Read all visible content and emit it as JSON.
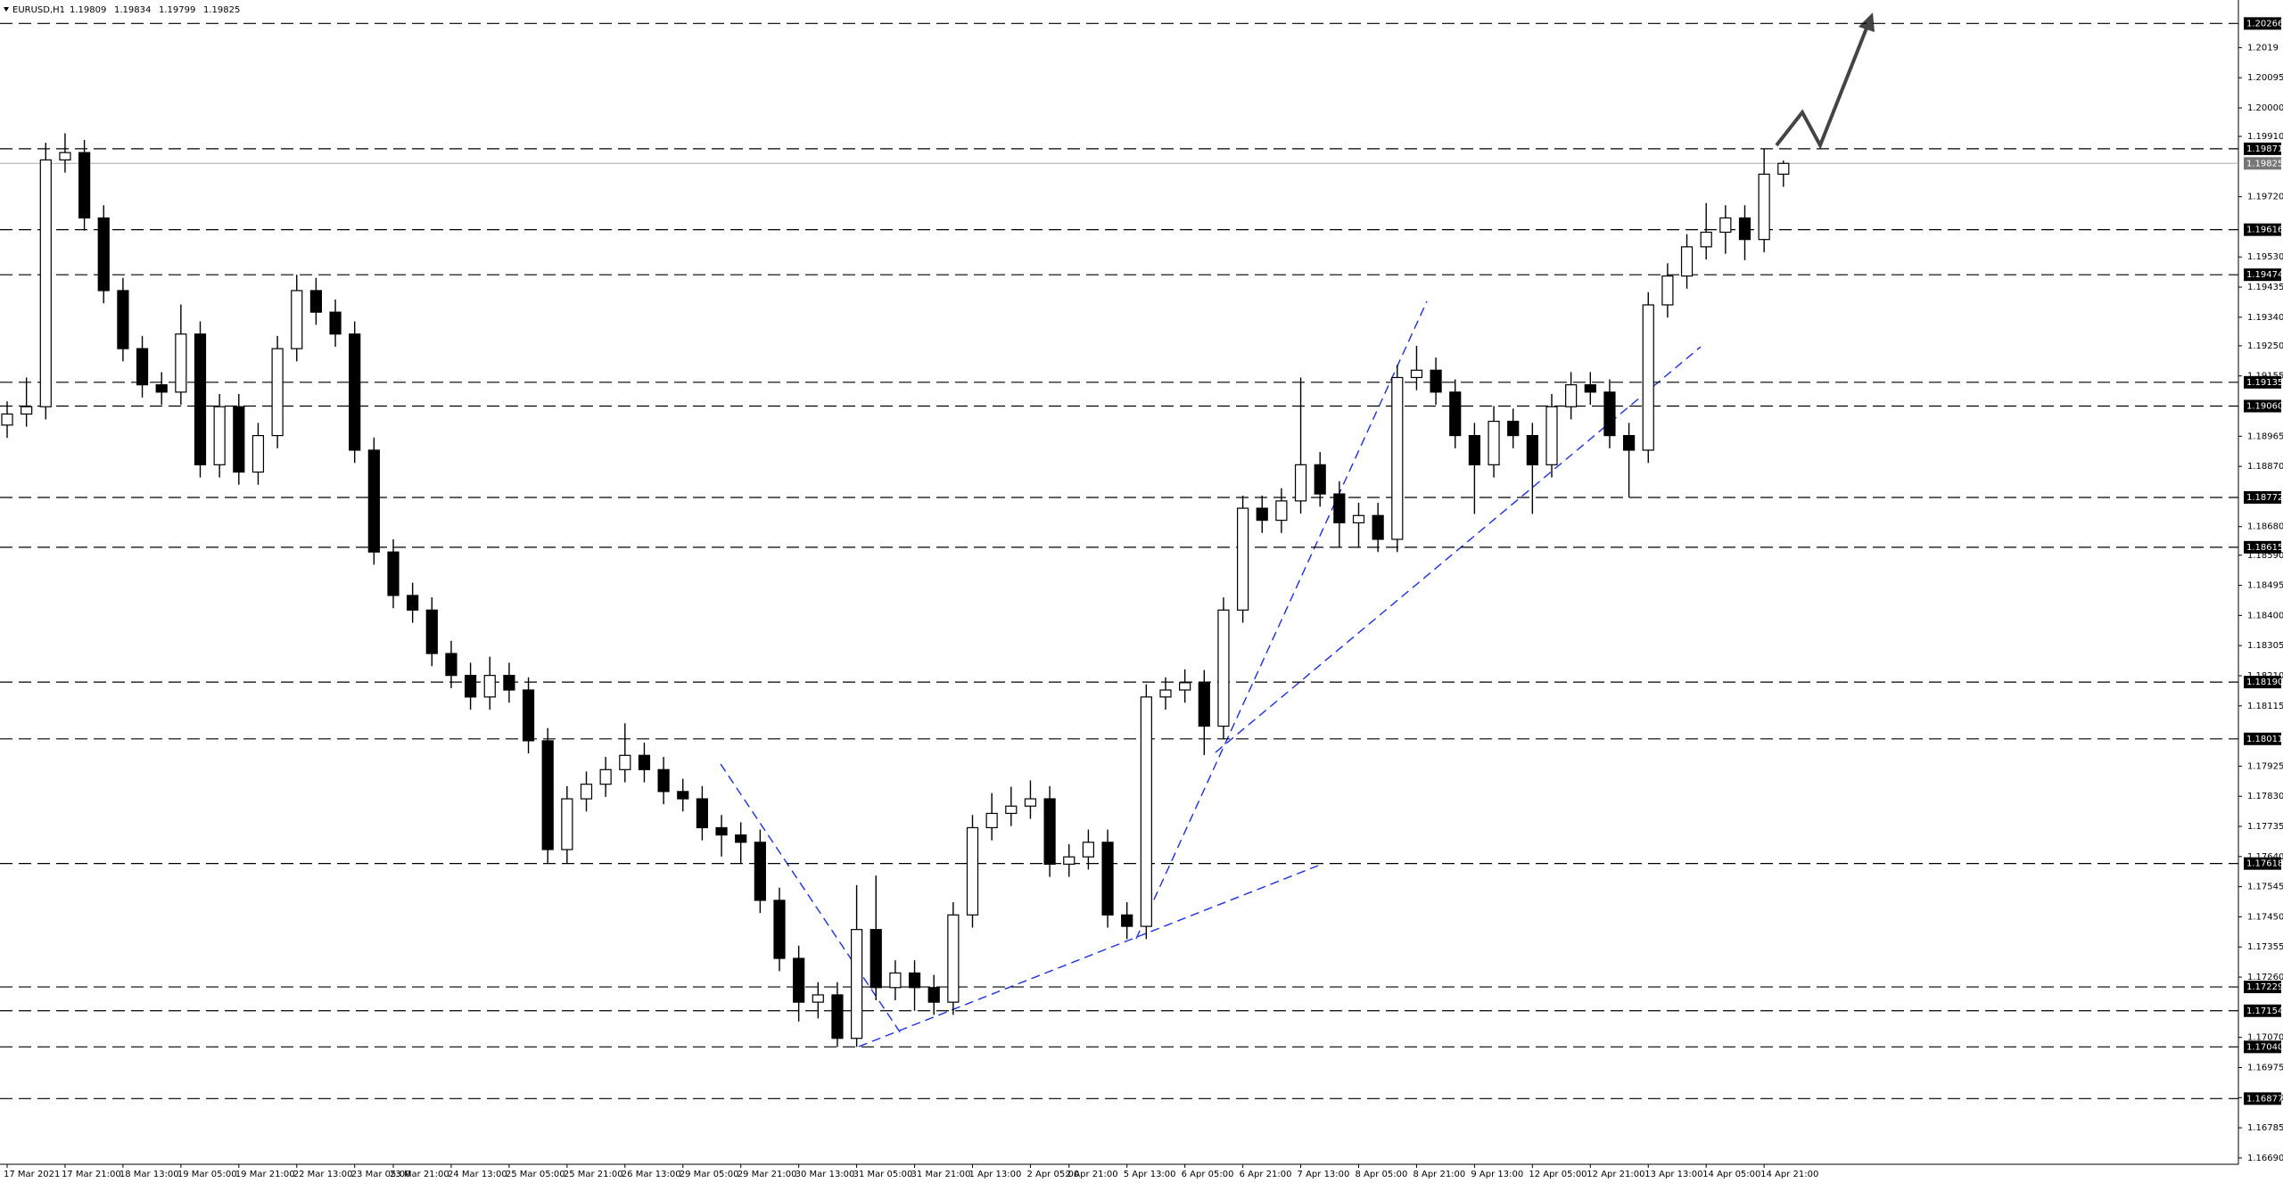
{
  "chart_data": {
    "type": "candlestick",
    "title": "EURUSD,H1",
    "header_values": [
      1.19809,
      1.19834,
      1.19799,
      1.19825
    ],
    "categories": [
      "17 Mar 2021",
      null,
      null,
      "17 Mar 21:00",
      null,
      null,
      "18 Mar 13:00",
      null,
      null,
      "19 Mar 05:00",
      null,
      null,
      "19 Mar 21:00",
      null,
      null,
      "22 Mar 13:00",
      null,
      null,
      "23 Mar 05:00",
      null,
      "23 Mar 21:00",
      null,
      null,
      "24 Mar 13:00",
      null,
      null,
      "25 Mar 05:00",
      null,
      null,
      "25 Mar 21:00",
      null,
      null,
      "26 Mar 13:00",
      null,
      null,
      "29 Mar 05:00",
      null,
      null,
      "29 Mar 21:00",
      null,
      null,
      "30 Mar 13:00",
      null,
      null,
      "31 Mar 05:00",
      null,
      null,
      "31 Mar 21:00",
      null,
      null,
      "1 Apr 13:00",
      null,
      null,
      "2 Apr 05:00",
      null,
      "2 Apr 21:00",
      null,
      null,
      "5 Apr 13:00",
      null,
      null,
      "6 Apr 05:00",
      null,
      null,
      "6 Apr 21:00",
      null,
      null,
      "7 Apr 13:00",
      null,
      null,
      "8 Apr 05:00",
      null,
      null,
      "8 Apr 21:00",
      null,
      null,
      "9 Apr 13:00",
      null,
      null,
      "12 Apr 05:00",
      null,
      null,
      "12 Apr 21:00",
      null,
      null,
      "13 Apr 13:00",
      null,
      null,
      "14 Apr 05:00",
      null,
      null,
      "14 Apr 21:00",
      null
    ],
    "open": [
      1.19,
      1.19035,
      1.19058,
      1.19836,
      1.19859,
      1.19653,
      1.19424,
      1.19241,
      1.19127,
      1.19104,
      1.19287,
      1.18875,
      1.19058,
      1.18852,
      1.18967,
      1.19241,
      1.19424,
      1.19356,
      1.19287,
      1.18921,
      1.186,
      1.18463,
      1.18417,
      1.1828,
      1.18211,
      1.18143,
      1.18211,
      1.18165,
      1.18005,
      1.17662,
      1.17822,
      1.17868,
      1.17914,
      1.17959,
      1.17914,
      1.17845,
      1.17822,
      1.17731,
      1.17708,
      1.17685,
      1.17502,
      1.17319,
      1.17181,
      1.17204,
      1.17067,
      1.1741,
      1.17227,
      1.17273,
      1.17227,
      1.17181,
      1.17456,
      1.17731,
      1.17776,
      1.17799,
      1.17822,
      1.17616,
      1.17639,
      1.17685,
      1.17456,
      1.1742,
      1.18143,
      1.18165,
      1.18188,
      1.18051,
      1.18417,
      1.18738,
      1.187,
      1.18761,
      1.18875,
      1.18783,
      1.18692,
      1.18715,
      1.1864,
      1.1915,
      1.19173,
      1.19104,
      1.18967,
      1.18875,
      1.19012,
      1.18967,
      1.18875,
      1.19058,
      1.19127,
      1.19104,
      1.18967,
      1.18921,
      1.19379,
      1.1947,
      1.19562,
      1.19608,
      1.19653,
      1.19585,
      1.19791
    ],
    "high": [
      1.19075,
      1.1915,
      1.1989,
      1.1992,
      1.19899,
      1.19693,
      1.19464,
      1.19281,
      1.19167,
      1.1938,
      1.19327,
      1.19098,
      1.19098,
      1.19007,
      1.19281,
      1.19474,
      1.19464,
      1.19396,
      1.19327,
      1.18961,
      1.1864,
      1.18503,
      1.18457,
      1.1832,
      1.18251,
      1.1827,
      1.18251,
      1.18205,
      1.18045,
      1.17862,
      1.17908,
      1.17954,
      1.1806,
      1.17999,
      1.17954,
      1.17885,
      1.17862,
      1.17771,
      1.17748,
      1.17725,
      1.17542,
      1.17359,
      1.17244,
      1.17244,
      1.1755,
      1.1758,
      1.17313,
      1.17313,
      1.17267,
      1.17496,
      1.17771,
      1.1784,
      1.1786,
      1.1788,
      1.17862,
      1.17679,
      1.17725,
      1.17725,
      1.17496,
      1.18183,
      1.18205,
      1.1823,
      1.18228,
      1.18457,
      1.18778,
      1.18778,
      1.18801,
      1.1915,
      1.18915,
      1.18823,
      1.18755,
      1.18755,
      1.1919,
      1.1925,
      1.19213,
      1.19144,
      1.19007,
      1.1906,
      1.19052,
      1.19007,
      1.19098,
      1.19167,
      1.19167,
      1.19144,
      1.19007,
      1.19419,
      1.1951,
      1.19602,
      1.197,
      1.19693,
      1.19693,
      1.19871,
      1.19834
    ],
    "low": [
      1.1896,
      1.18995,
      1.19018,
      1.19796,
      1.19613,
      1.19384,
      1.19201,
      1.19087,
      1.19064,
      1.19064,
      1.18835,
      1.18835,
      1.18812,
      1.18812,
      1.18927,
      1.19201,
      1.19316,
      1.19247,
      1.18881,
      1.1856,
      1.18423,
      1.18377,
      1.1824,
      1.18171,
      1.18103,
      1.18103,
      1.18125,
      1.17965,
      1.17618,
      1.17618,
      1.17782,
      1.17828,
      1.17874,
      1.17874,
      1.17805,
      1.17782,
      1.17691,
      1.1764,
      1.17618,
      1.17462,
      1.17279,
      1.1712,
      1.1713,
      1.1704,
      1.1704,
      1.17187,
      1.17187,
      1.17154,
      1.17141,
      1.17141,
      1.17416,
      1.17691,
      1.17736,
      1.17759,
      1.17576,
      1.17576,
      1.17599,
      1.17416,
      1.1738,
      1.1738,
      1.18103,
      1.18125,
      1.1796,
      1.18011,
      1.18377,
      1.1866,
      1.1866,
      1.18721,
      1.18743,
      1.18615,
      1.18615,
      1.186,
      1.186,
      1.1911,
      1.19064,
      1.18927,
      1.1872,
      1.18835,
      1.18927,
      1.1872,
      1.18835,
      1.19018,
      1.19064,
      1.18927,
      1.18772,
      1.18881,
      1.19339,
      1.1943,
      1.19522,
      1.1954,
      1.1952,
      1.19545,
      1.19751
    ],
    "close": [
      1.19035,
      1.19058,
      1.19836,
      1.19859,
      1.19653,
      1.19424,
      1.19241,
      1.19127,
      1.19104,
      1.19287,
      1.18875,
      1.19058,
      1.18852,
      1.18967,
      1.19241,
      1.19424,
      1.19356,
      1.19287,
      1.18921,
      1.186,
      1.18463,
      1.18417,
      1.1828,
      1.18211,
      1.18143,
      1.18211,
      1.18165,
      1.18005,
      1.17662,
      1.17822,
      1.17868,
      1.17914,
      1.17959,
      1.17914,
      1.17845,
      1.17822,
      1.17731,
      1.17708,
      1.17685,
      1.17502,
      1.17319,
      1.17181,
      1.17204,
      1.17067,
      1.1741,
      1.17227,
      1.17273,
      1.17227,
      1.17181,
      1.17456,
      1.17731,
      1.17776,
      1.17799,
      1.17822,
      1.17616,
      1.17639,
      1.17685,
      1.17456,
      1.1742,
      1.18143,
      1.18165,
      1.18188,
      1.18051,
      1.18417,
      1.18738,
      1.187,
      1.18761,
      1.18875,
      1.18783,
      1.18692,
      1.18715,
      1.1864,
      1.1915,
      1.19173,
      1.19104,
      1.18967,
      1.18875,
      1.19012,
      1.18967,
      1.18875,
      1.19058,
      1.19127,
      1.19104,
      1.18967,
      1.18921,
      1.19379,
      1.1947,
      1.19562,
      1.19608,
      1.19653,
      1.19585,
      1.19791,
      1.19825
    ],
    "ylim": [
      1.1667,
      1.2034
    ],
    "yticks": [
      1.2019,
      1.20095,
      {
        "value": 1.2,
        "label": "1.20000"
      },
      {
        "value": 1.1991,
        "label": "1.19910"
      },
      {
        "value": 1.1972,
        "label": "1.19720"
      },
      {
        "value": 1.1953,
        "label": "1.19530"
      },
      1.19435,
      {
        "value": 1.1934,
        "label": "1.19340"
      },
      {
        "value": 1.1925,
        "label": "1.19250"
      },
      1.19155,
      1.18965,
      {
        "value": 1.1887,
        "label": "1.18870"
      },
      {
        "value": 1.1868,
        "label": "1.18680"
      },
      {
        "value": 1.1859,
        "label": "1.18590"
      },
      1.18495,
      {
        "value": 1.184,
        "label": "1.18400"
      },
      1.18305,
      {
        "value": 1.1821,
        "label": "1.18210"
      },
      1.18115,
      1.17925,
      {
        "value": 1.1783,
        "label": "1.17830"
      },
      1.17735,
      {
        "value": 1.1764,
        "label": "1.17640"
      },
      1.17545,
      {
        "value": 1.1745,
        "label": "1.17450"
      },
      1.17355,
      {
        "value": 1.1726,
        "label": "1.17260"
      },
      {
        "value": 1.1707,
        "label": "1.17070"
      },
      1.16975,
      {
        "value": 1.1688,
        "label": "1.16880"
      },
      1.16785,
      {
        "value": 1.1669,
        "label": "1.16690"
      }
    ],
    "levels": [
      1.20266,
      1.19871,
      1.19616,
      1.19474,
      1.19135,
      {
        "value": 1.1906,
        "label": "1.19060"
      },
      1.18772,
      1.18615,
      {
        "value": 1.1819,
        "label": "1.18190"
      },
      1.18011,
      1.17618,
      1.17229,
      1.17154,
      {
        "value": 1.1704,
        "label": "1.17040"
      },
      1.16877
    ],
    "bid": 1.19825
  }
}
